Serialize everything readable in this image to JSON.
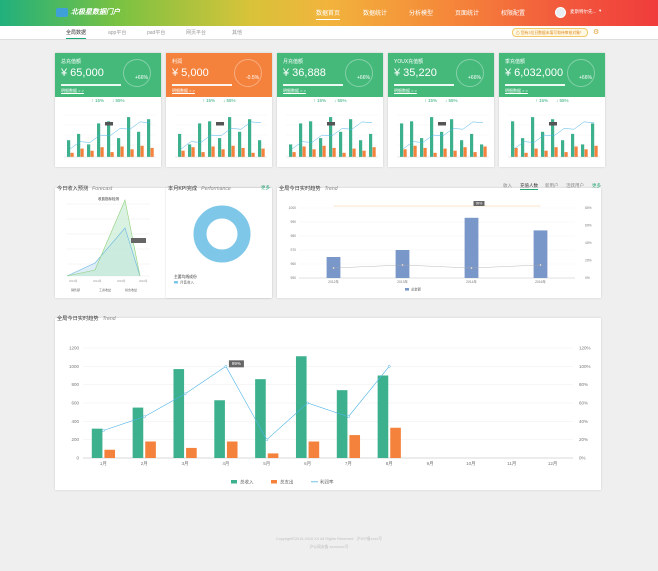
{
  "header": {
    "logo_text": "北极星数据门户",
    "nav": [
      "数据首页",
      "数据统计",
      "分析模型",
      "页面统计",
      "权限配置"
    ],
    "username": "麦斯特尔先..."
  },
  "tabs": [
    "全局数据",
    "app平台",
    "pad平台",
    "网页平台",
    "其他"
  ],
  "notice": "您有2位日数据未填写和待审核对象！",
  "cards": [
    {
      "title": "总充值额",
      "value": "¥ 65,000",
      "change": "+66%",
      "link": "明细数据 > >",
      "up": "↑ 15%",
      "down": "↓ 55%",
      "color": "#44b97a"
    },
    {
      "title": "利润",
      "value": "¥ 5,000",
      "change": "-0.5%",
      "link": "明细数据 > >",
      "up": "↑ 15%",
      "down": "↓ 55%",
      "color": "#f4823c"
    },
    {
      "title": "月充值额",
      "value": "¥ 36,888",
      "change": "+66%",
      "link": "明细数据 > >",
      "up": "↑ 15%",
      "down": "↓ 55%",
      "color": "#44b97a"
    },
    {
      "title": "YOUX充值额",
      "value": "¥ 35,220",
      "change": "+66%",
      "link": "明细数据 > >",
      "up": "↑ 15%",
      "down": "↓ 55%",
      "color": "#44b97a"
    },
    {
      "title": "季充值额",
      "value": "¥ 6,032,000",
      "change": "+66%",
      "link": "明细数据 > >",
      "up": "↑ 15%",
      "down": "↓ 55%",
      "color": "#44b97a"
    }
  ],
  "panels": {
    "forecast": {
      "title": "今日收入预测",
      "sub": "Forecast"
    },
    "kpi": {
      "title": "本月KPI完成",
      "sub": "Performance",
      "link": "更多",
      "caption": "主要均线成份",
      "legend": "月售收入"
    },
    "trend_small": {
      "title": "全局今日实时趋势",
      "sub": "Trend",
      "tabs": [
        "收入",
        "充值人数",
        "新用户",
        "活跃用户"
      ],
      "link": "更多"
    },
    "trend_big": {
      "title": "全局今日实时趋势",
      "sub": "Trend"
    }
  },
  "footer": {
    "line1": "Copyright©2015-2016 XX All Rights Reserved · 沪ICP备xxxx号",
    "line2": "沪公网安备 xxxxxxxx号"
  },
  "chart_data": [
    {
      "type": "bar",
      "id": "big-trend",
      "categories": [
        "1月",
        "2月",
        "3月",
        "4月",
        "5月",
        "6月",
        "7月",
        "8月",
        "9月",
        "10月",
        "11月",
        "12月"
      ],
      "series": [
        {
          "name": "总收入",
          "type": "bar",
          "color": "#3db08e",
          "values": [
            320,
            550,
            970,
            630,
            860,
            1110,
            740,
            900,
            null,
            null,
            null,
            null
          ]
        },
        {
          "name": "总支出",
          "type": "bar",
          "color": "#f4823c",
          "values": [
            90,
            180,
            110,
            180,
            50,
            180,
            250,
            330,
            null,
            null,
            null,
            null
          ]
        },
        {
          "name": "利润率",
          "type": "line",
          "color": "#4db3e6",
          "values": [
            30,
            45,
            70,
            100,
            20,
            60,
            45,
            100,
            null,
            null,
            null,
            null
          ]
        }
      ],
      "ylim": [
        0,
        1200
      ],
      "y2lim": [
        0,
        120
      ],
      "yticks": [
        "0",
        "200",
        "400",
        "600",
        "800",
        "1000",
        "1200"
      ],
      "y2ticks": [
        "0%",
        "20%",
        "40%",
        "60%",
        "80%",
        "100%",
        "120%"
      ],
      "annotation": "99%",
      "legend": "bottom"
    },
    {
      "type": "bar",
      "id": "small-trend",
      "categories": [
        "2012年",
        "2013年",
        "2014年",
        "2016年"
      ],
      "series": [
        {
          "name": "总金额",
          "type": "bar",
          "color": "#7a97c9",
          "values": [
            965,
            970,
            993,
            984
          ]
        }
      ],
      "ylim": [
        950,
        1000
      ],
      "y2lim": [
        0,
        80
      ],
      "yticks": [
        "950",
        "960",
        "970",
        "980",
        "990",
        "1000"
      ],
      "y2ticks": [
        "0%",
        "20%",
        "40%",
        "60%",
        "80%"
      ],
      "annotation": "99%",
      "legend": "bottom"
    },
    {
      "type": "area",
      "id": "forecast",
      "title": "收费指标检测",
      "categories": [
        "2013年",
        "2014年",
        "2015年",
        "2016年"
      ],
      "legend": [
        "销售额",
        "工资收益",
        "综合收益"
      ]
    },
    {
      "type": "pie",
      "id": "kpi",
      "values": [
        100
      ],
      "colors": [
        "#7ec7e8"
      ]
    }
  ]
}
